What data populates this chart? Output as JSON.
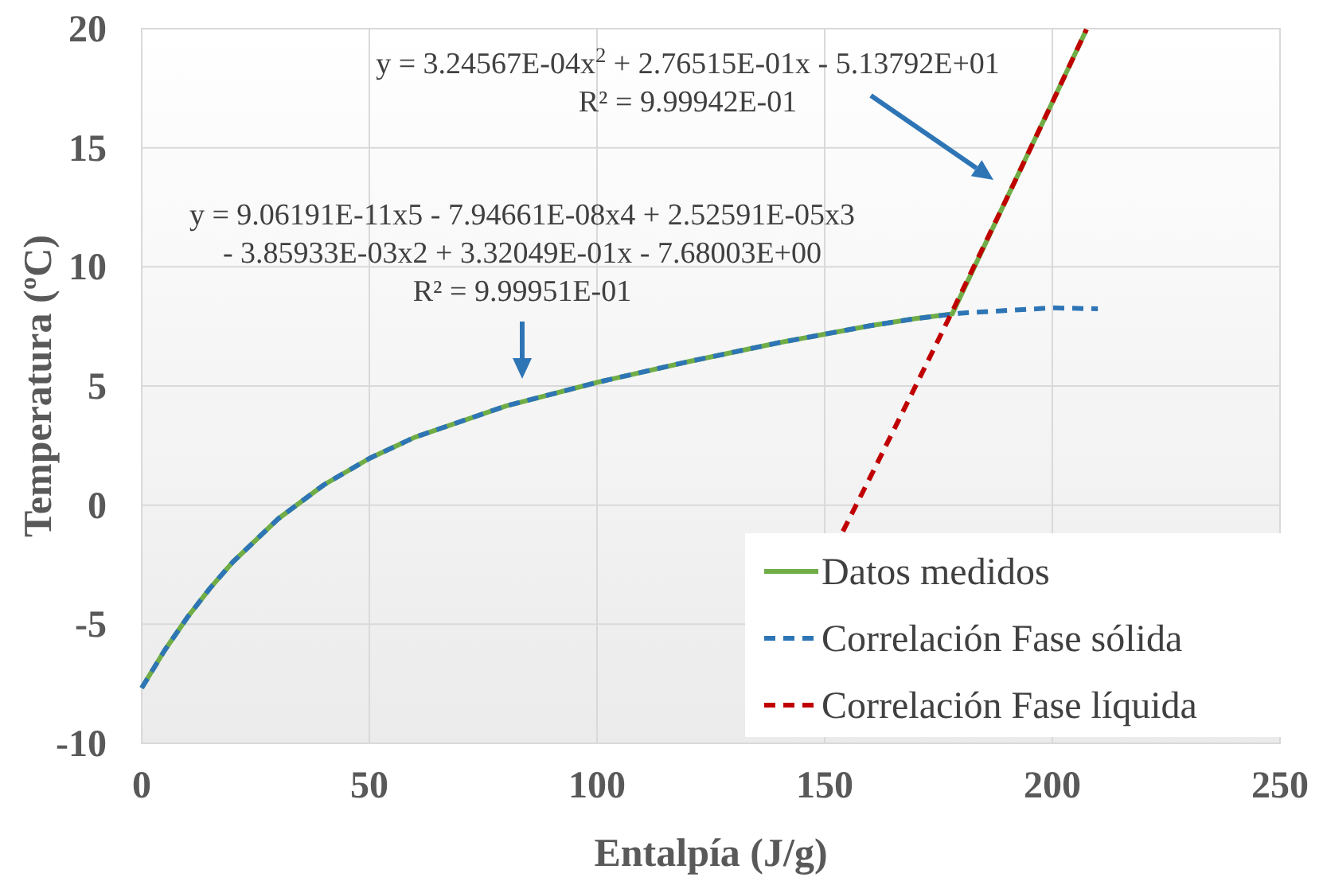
{
  "chart_data": {
    "type": "line",
    "xlabel": "Entalpía (J/g)",
    "ylabel": "Temperatura (ºC)",
    "xlim": [
      0,
      250
    ],
    "xticks": [
      0,
      50,
      100,
      150,
      200,
      250
    ],
    "ylim": [
      -10,
      20
    ],
    "yticks": [
      -10,
      -5,
      0,
      5,
      10,
      15,
      20
    ],
    "grid": true,
    "legend": "bottom right",
    "series": [
      {
        "name": "Datos medidos",
        "color": "#70ad47",
        "line_style": "solid",
        "x": [
          0,
          5,
          10,
          15,
          20,
          30,
          40,
          50,
          60,
          80,
          100,
          120,
          140,
          160,
          170,
          178,
          190,
          200,
          207.5
        ],
        "values": [
          -7.68,
          -6.11,
          -4.72,
          -3.49,
          -2.39,
          -0.57,
          0.85,
          1.96,
          2.85,
          4.16,
          5.15,
          6.02,
          6.82,
          7.53,
          7.83,
          8.02,
          12.88,
          16.91,
          19.97
        ]
      },
      {
        "name": "Correlación Fase sólida",
        "color": "#2e75b6",
        "line_style": "dashed",
        "x": [
          0,
          5,
          10,
          15,
          20,
          30,
          40,
          50,
          60,
          80,
          100,
          120,
          140,
          160,
          170,
          180,
          200,
          210
        ],
        "values": [
          -7.68,
          -6.11,
          -4.72,
          -3.49,
          -2.39,
          -0.57,
          0.85,
          1.96,
          2.85,
          4.16,
          5.15,
          6.02,
          6.82,
          7.53,
          7.83,
          8.06,
          8.28,
          8.24
        ]
      },
      {
        "name": "Correlación Fase líquida",
        "color": "#c00000",
        "line_style": "dashed",
        "x": [
          154,
          160,
          170,
          178,
          190,
          200,
          207.5
        ],
        "values": [
          -1.1,
          1.17,
          5.01,
          8.12,
          12.88,
          16.91,
          19.97
        ]
      }
    ],
    "annotations": [
      "y = 3.24567E-04x$^{2}$ + 2.76515E-01x - 5.13792E+01\nR² = 9.99942E-01",
      "y = 9.06191E-11x5 - 7.94661E-08x4 + 2.52591E-05x3\n- 3.85933E-03x2 + 3.32049E-01x - 7.68003E+00\nR² = 9.99951E-01"
    ]
  }
}
